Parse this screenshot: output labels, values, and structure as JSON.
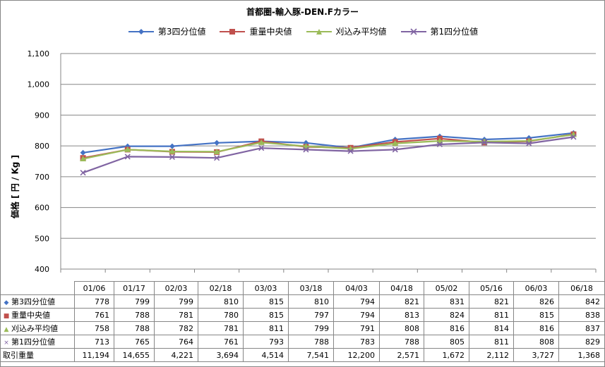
{
  "chart_data": {
    "type": "line",
    "title": "首都圏-輸入豚-DEN.Fカラー",
    "ylabel": "価格 [ 円 / Kg ]",
    "xlabel": "",
    "categories": [
      "01/06",
      "01/17",
      "02/03",
      "02/18",
      "03/03",
      "03/18",
      "04/03",
      "04/18",
      "05/02",
      "05/16",
      "06/03",
      "06/18"
    ],
    "ylim": [
      400,
      1100
    ],
    "yticks": [
      "400",
      "500",
      "600",
      "700",
      "800",
      "900",
      "1,000",
      "1,100"
    ],
    "grid": true,
    "legend_position": "top",
    "series": [
      {
        "name": "第3四分位値",
        "color": "#4472C4",
        "marker": "diamond",
        "marker_glyph": "◆",
        "values": [
          778,
          799,
          799,
          810,
          815,
          810,
          794,
          821,
          831,
          821,
          826,
          842
        ]
      },
      {
        "name": "重量中央値",
        "color": "#C0504D",
        "marker": "square",
        "marker_glyph": "■",
        "values": [
          761,
          788,
          781,
          780,
          815,
          797,
          794,
          813,
          824,
          811,
          815,
          838
        ]
      },
      {
        "name": "刈込み平均値",
        "color": "#9BBB59",
        "marker": "triangle",
        "marker_glyph": "▲",
        "values": [
          758,
          788,
          782,
          781,
          811,
          799,
          791,
          808,
          816,
          814,
          816,
          837
        ]
      },
      {
        "name": "第1四分位値",
        "color": "#8064A2",
        "marker": "x",
        "marker_glyph": "×",
        "values": [
          713,
          765,
          764,
          761,
          793,
          788,
          783,
          788,
          805,
          811,
          808,
          829
        ]
      }
    ],
    "volume": {
      "label": "取引重量",
      "values": [
        "11,194",
        "14,655",
        "4,221",
        "3,694",
        "4,514",
        "7,541",
        "12,200",
        "2,571",
        "1,672",
        "2,112",
        "3,727",
        "1,368"
      ]
    },
    "table_values": {
      "q3": [
        "778",
        "799",
        "799",
        "810",
        "815",
        "810",
        "794",
        "821",
        "831",
        "821",
        "826",
        "842"
      ],
      "med": [
        "761",
        "788",
        "781",
        "780",
        "815",
        "797",
        "794",
        "813",
        "824",
        "811",
        "815",
        "838"
      ],
      "trim": [
        "758",
        "788",
        "782",
        "781",
        "811",
        "799",
        "791",
        "808",
        "816",
        "814",
        "816",
        "837"
      ],
      "q1": [
        "713",
        "765",
        "764",
        "761",
        "793",
        "788",
        "783",
        "788",
        "805",
        "811",
        "808",
        "829"
      ]
    }
  }
}
